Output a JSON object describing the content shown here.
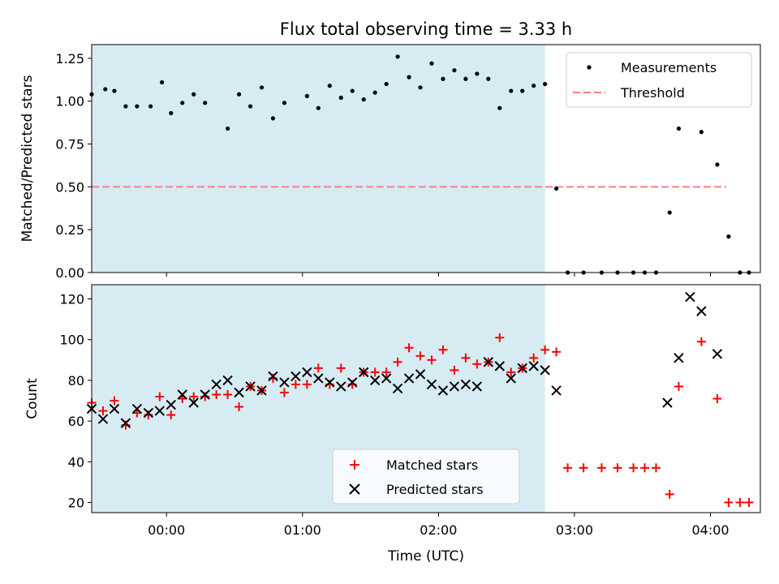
{
  "chart_data": [
    {
      "type": "scatter",
      "title": "Flux total observing time = 3.33 h",
      "ylabel": "Matched/Predicted stars",
      "xlim": [
        -33,
        262
      ],
      "ylim": [
        0,
        1.33
      ],
      "yticks": [
        0,
        0.25,
        0.5,
        0.75,
        1.0,
        1.25
      ],
      "ytick_labels": [
        "0.00",
        "0.25",
        "0.50",
        "0.75",
        "1.00",
        "1.25"
      ],
      "shaded_region": {
        "from": -33,
        "to": 167,
        "color": "#add8e6"
      },
      "legend": {
        "position": "top-right",
        "entries": [
          "Measurements",
          "Threshold"
        ]
      },
      "series": [
        {
          "name": "Measurements",
          "color": "#000000",
          "marker": "dot",
          "x": [
            -33,
            -27,
            -23,
            -18,
            -13,
            -7,
            -2,
            2,
            7,
            12,
            17,
            27,
            32,
            37,
            42,
            47,
            52,
            62,
            67,
            72,
            77,
            82,
            87,
            92,
            97,
            102,
            107,
            112,
            117,
            122,
            127,
            132,
            137,
            142,
            147,
            152,
            157,
            162,
            167,
            172,
            177,
            184,
            192,
            199,
            206,
            211,
            216,
            222,
            226,
            236,
            243,
            248,
            253,
            257
          ],
          "y": [
            1.04,
            1.07,
            1.06,
            0.97,
            0.97,
            0.97,
            1.11,
            0.93,
            0.99,
            1.04,
            0.99,
            0.84,
            1.04,
            0.97,
            1.08,
            0.9,
            0.99,
            1.03,
            0.96,
            1.09,
            1.02,
            1.06,
            1.01,
            1.05,
            1.1,
            1.26,
            1.14,
            1.08,
            1.22,
            1.13,
            1.18,
            1.13,
            1.16,
            1.13,
            0.96,
            1.06,
            1.06,
            1.09,
            1.1,
            0.49,
            0,
            0,
            0,
            0,
            0,
            0,
            0,
            0.35,
            0.84,
            0.82,
            0.63,
            0.21,
            0,
            0
          ]
        },
        {
          "name": "Threshold",
          "color": "#ff7f7f",
          "style": "dashed",
          "x": [
            -33,
            247
          ],
          "y": [
            0.5,
            0.5
          ]
        }
      ]
    },
    {
      "type": "scatter",
      "xlabel": "Time (UTC)",
      "ylabel": "Count",
      "xlim": [
        -33,
        262
      ],
      "ylim": [
        15,
        127
      ],
      "yticks": [
        20,
        40,
        60,
        80,
        100,
        120
      ],
      "xticks": [
        0,
        60,
        120,
        180,
        240
      ],
      "xtick_labels": [
        "00:00",
        "01:00",
        "02:00",
        "03:00",
        "04:00"
      ],
      "shaded_region": {
        "from": -33,
        "to": 167,
        "color": "#add8e6"
      },
      "legend": {
        "position": "bottom-center",
        "entries": [
          "Matched stars",
          "Predicted stars"
        ]
      },
      "series": [
        {
          "name": "Matched stars",
          "color": "#ff0000",
          "marker": "plus",
          "x": [
            -33,
            -28,
            -23,
            -18,
            -13,
            -8,
            -3,
            2,
            7,
            12,
            17,
            22,
            27,
            32,
            37,
            42,
            47,
            52,
            57,
            62,
            67,
            72,
            77,
            82,
            87,
            92,
            97,
            102,
            107,
            112,
            117,
            122,
            127,
            132,
            137,
            142,
            147,
            152,
            157,
            162,
            167,
            172,
            177,
            184,
            192,
            199,
            206,
            211,
            216,
            222,
            226,
            236,
            243,
            248,
            253,
            257
          ],
          "y": [
            69,
            65,
            70,
            58,
            64,
            63,
            72,
            63,
            71,
            72,
            72,
            73,
            73,
            67,
            77,
            75,
            81,
            74,
            78,
            78,
            86,
            78,
            86,
            78,
            84,
            84,
            84,
            89,
            96,
            92,
            90,
            95,
            85,
            91,
            88,
            89,
            101,
            84,
            86,
            91,
            95,
            94,
            37,
            37,
            37,
            37,
            37,
            37,
            37,
            24,
            77,
            99,
            71,
            20,
            20,
            20
          ]
        },
        {
          "name": "Predicted stars",
          "color": "#000000",
          "marker": "x",
          "x": [
            -33,
            -28,
            -23,
            -18,
            -13,
            -8,
            -3,
            2,
            7,
            12,
            17,
            22,
            27,
            32,
            37,
            42,
            47,
            52,
            57,
            62,
            67,
            72,
            77,
            82,
            87,
            92,
            97,
            102,
            107,
            112,
            117,
            122,
            127,
            132,
            137,
            142,
            147,
            152,
            157,
            162,
            167,
            172,
            221,
            226,
            231,
            236,
            243
          ],
          "y": [
            66,
            61,
            66,
            59,
            66,
            64,
            65,
            68,
            73,
            69,
            73,
            78,
            80,
            74,
            77,
            75,
            82,
            79,
            82,
            84,
            81,
            79,
            77,
            79,
            84,
            80,
            81,
            76,
            81,
            83,
            78,
            75,
            77,
            78,
            77,
            89,
            87,
            81,
            86,
            87,
            85,
            75,
            69,
            91,
            121,
            114,
            93
          ]
        }
      ]
    }
  ]
}
